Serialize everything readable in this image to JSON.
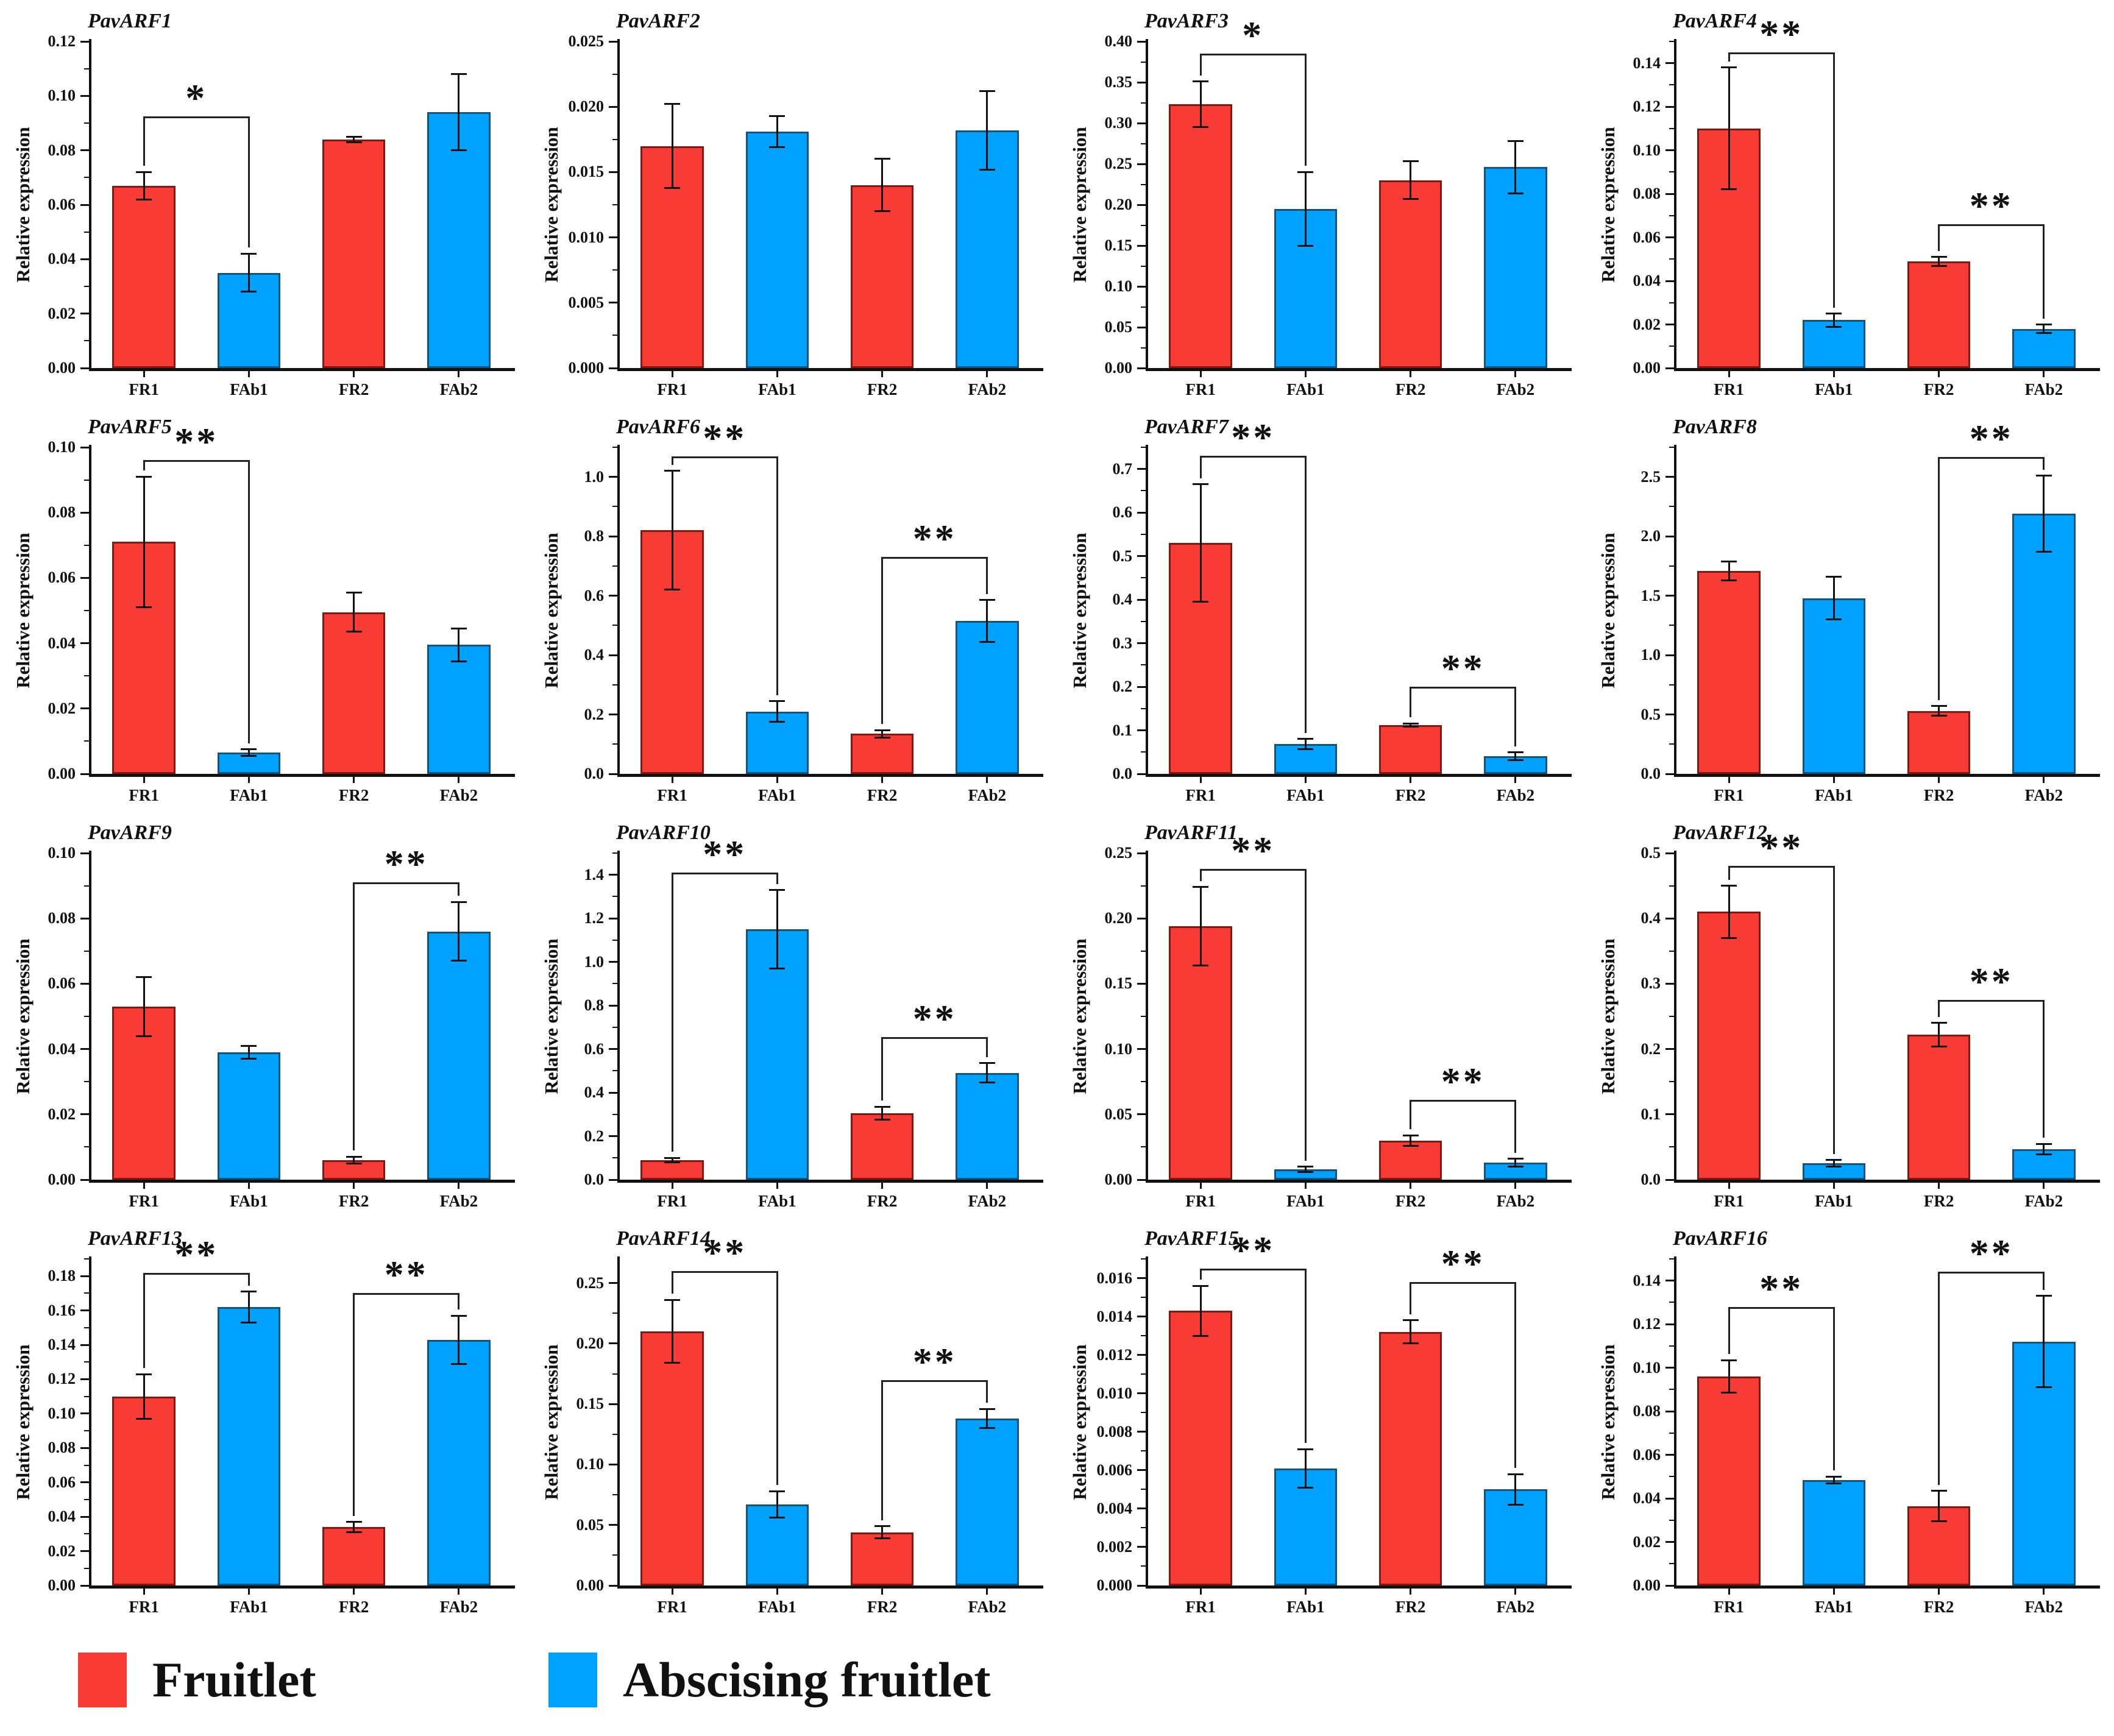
{
  "figure": {
    "ylabel": "Relative expression",
    "categories": [
      "FR1",
      "FAb1",
      "FR2",
      "FAb2"
    ]
  },
  "legend": {
    "items": [
      {
        "label": "Fruitlet",
        "color": "#F93B35"
      },
      {
        "label": "Abscising fruitlet",
        "color": "#00A2FF"
      }
    ]
  },
  "chart_data": {
    "type": "bar",
    "categories": [
      "FR1",
      "FAb1",
      "FR2",
      "FAb2"
    ],
    "ylabel": "Relative expression",
    "bar_colors": [
      "#F93B35",
      "#00A2FF",
      "#F93B35",
      "#00A2FF"
    ],
    "bar_border_colors": [
      "#7E1A12",
      "#11557C",
      "#7E1A12",
      "#11557C"
    ],
    "grid": false,
    "legend_position": "bottom",
    "charts": [
      {
        "gene": "PavARF1",
        "ymax": 0.12,
        "ystep": 0.02,
        "decimals": 2,
        "values": [
          0.067,
          0.035,
          0.084,
          0.094
        ],
        "errors": [
          0.005,
          0.007,
          0.001,
          0.014
        ],
        "sig": [
          {
            "pair": [
              0,
              1
            ],
            "label": "*",
            "y": 0.0925
          }
        ]
      },
      {
        "gene": "PavARF2",
        "ymax": 0.025,
        "ystep": 0.005,
        "decimals": 3,
        "values": [
          0.017,
          0.0181,
          0.014,
          0.0182
        ],
        "errors": [
          0.0032,
          0.0012,
          0.002,
          0.003
        ],
        "sig": []
      },
      {
        "gene": "PavARF3",
        "ymax": 0.4,
        "ystep": 0.05,
        "decimals": 2,
        "values": [
          0.323,
          0.195,
          0.23,
          0.246
        ],
        "errors": [
          0.028,
          0.045,
          0.023,
          0.032
        ],
        "sig": [
          {
            "pair": [
              0,
              1
            ],
            "label": "*",
            "y": 0.385
          }
        ]
      },
      {
        "gene": "PavARF4",
        "ymax": 0.15,
        "ystep": 0.02,
        "decimals": 2,
        "values": [
          0.11,
          0.022,
          0.049,
          0.018
        ],
        "errors": [
          0.028,
          0.003,
          0.002,
          0.002
        ],
        "sig": [
          {
            "pair": [
              0,
              1
            ],
            "label": "**",
            "y": 0.145
          },
          {
            "pair": [
              2,
              3
            ],
            "label": "**",
            "y": 0.066
          }
        ]
      },
      {
        "gene": "PavARF5",
        "ymax": 0.1,
        "ystep": 0.02,
        "decimals": 2,
        "values": [
          0.071,
          0.0065,
          0.0495,
          0.0395
        ],
        "errors": [
          0.02,
          0.001,
          0.006,
          0.005
        ],
        "sig": [
          {
            "pair": [
              0,
              1
            ],
            "label": "**",
            "y": 0.096
          }
        ]
      },
      {
        "gene": "PavARF6",
        "ymax": 1.1,
        "ystep": 0.2,
        "decimals": 1,
        "values": [
          0.82,
          0.21,
          0.135,
          0.515
        ],
        "errors": [
          0.2,
          0.035,
          0.012,
          0.07
        ],
        "sig": [
          {
            "pair": [
              0,
              1
            ],
            "label": "**",
            "y": 1.07
          },
          {
            "pair": [
              2,
              3
            ],
            "label": "**",
            "y": 0.73
          }
        ]
      },
      {
        "gene": "PavARF7",
        "ymax": 0.75,
        "ystep": 0.1,
        "decimals": 1,
        "values": [
          0.53,
          0.068,
          0.112,
          0.04
        ],
        "errors": [
          0.135,
          0.012,
          0.004,
          0.009
        ],
        "sig": [
          {
            "pair": [
              0,
              1
            ],
            "label": "**",
            "y": 0.73
          },
          {
            "pair": [
              2,
              3
            ],
            "label": "**",
            "y": 0.2
          }
        ]
      },
      {
        "gene": "PavARF8",
        "ymax": 2.75,
        "ystep": 0.5,
        "decimals": 1,
        "values": [
          1.71,
          1.48,
          0.53,
          2.19
        ],
        "errors": [
          0.08,
          0.18,
          0.04,
          0.32
        ],
        "sig": [
          {
            "pair": [
              2,
              3
            ],
            "label": "**",
            "y": 2.67
          }
        ]
      },
      {
        "gene": "PavARF9",
        "ymax": 0.1,
        "ystep": 0.02,
        "decimals": 2,
        "values": [
          0.053,
          0.039,
          0.006,
          0.076
        ],
        "errors": [
          0.009,
          0.002,
          0.001,
          0.009
        ],
        "sig": [
          {
            "pair": [
              2,
              3
            ],
            "label": "**",
            "y": 0.091
          }
        ]
      },
      {
        "gene": "PavARF10",
        "ymax": 1.5,
        "ystep": 0.2,
        "decimals": 1,
        "values": [
          0.09,
          1.15,
          0.305,
          0.49
        ],
        "errors": [
          0.01,
          0.18,
          0.03,
          0.045
        ],
        "sig": [
          {
            "pair": [
              0,
              1
            ],
            "label": "**",
            "y": 1.41
          },
          {
            "pair": [
              2,
              3
            ],
            "label": "**",
            "y": 0.655
          }
        ]
      },
      {
        "gene": "PavARF11",
        "ymax": 0.25,
        "ystep": 0.05,
        "decimals": 2,
        "values": [
          0.194,
          0.008,
          0.03,
          0.013
        ],
        "errors": [
          0.03,
          0.002,
          0.004,
          0.003
        ],
        "sig": [
          {
            "pair": [
              0,
              1
            ],
            "label": "**",
            "y": 0.238
          },
          {
            "pair": [
              2,
              3
            ],
            "label": "**",
            "y": 0.061
          }
        ]
      },
      {
        "gene": "PavARF12",
        "ymax": 0.5,
        "ystep": 0.1,
        "decimals": 1,
        "values": [
          0.41,
          0.025,
          0.222,
          0.047
        ],
        "errors": [
          0.04,
          0.005,
          0.018,
          0.008
        ],
        "sig": [
          {
            "pair": [
              0,
              1
            ],
            "label": "**",
            "y": 0.48
          },
          {
            "pair": [
              2,
              3
            ],
            "label": "**",
            "y": 0.275
          }
        ]
      },
      {
        "gene": "PavARF13",
        "ymax": 0.19,
        "ystep": 0.02,
        "decimals": 2,
        "values": [
          0.11,
          0.162,
          0.034,
          0.143
        ],
        "errors": [
          0.013,
          0.009,
          0.003,
          0.014
        ],
        "sig": [
          {
            "pair": [
              0,
              1
            ],
            "label": "**",
            "y": 0.182
          },
          {
            "pair": [
              2,
              3
            ],
            "label": "**",
            "y": 0.17
          }
        ]
      },
      {
        "gene": "PavARF14",
        "ymax": 0.27,
        "ystep": 0.05,
        "decimals": 2,
        "values": [
          0.21,
          0.067,
          0.044,
          0.138
        ],
        "errors": [
          0.026,
          0.011,
          0.005,
          0.008
        ],
        "sig": [
          {
            "pair": [
              0,
              1
            ],
            "label": "**",
            "y": 0.26
          },
          {
            "pair": [
              2,
              3
            ],
            "label": "**",
            "y": 0.17
          }
        ]
      },
      {
        "gene": "PavARF15",
        "ymax": 0.017,
        "ystep": 0.002,
        "decimals": 3,
        "values": [
          0.0143,
          0.0061,
          0.0132,
          0.005
        ],
        "errors": [
          0.0013,
          0.001,
          0.0006,
          0.0008
        ],
        "sig": [
          {
            "pair": [
              0,
              1
            ],
            "label": "**",
            "y": 0.0165
          },
          {
            "pair": [
              2,
              3
            ],
            "label": "**",
            "y": 0.0158
          }
        ]
      },
      {
        "gene": "PavARF16",
        "ymax": 0.15,
        "ystep": 0.02,
        "decimals": 2,
        "values": [
          0.096,
          0.0485,
          0.0365,
          0.112
        ],
        "errors": [
          0.0075,
          0.0015,
          0.007,
          0.021
        ],
        "sig": [
          {
            "pair": [
              0,
              1
            ],
            "label": "**",
            "y": 0.128
          },
          {
            "pair": [
              2,
              3
            ],
            "label": "**",
            "y": 0.144
          }
        ]
      }
    ]
  }
}
